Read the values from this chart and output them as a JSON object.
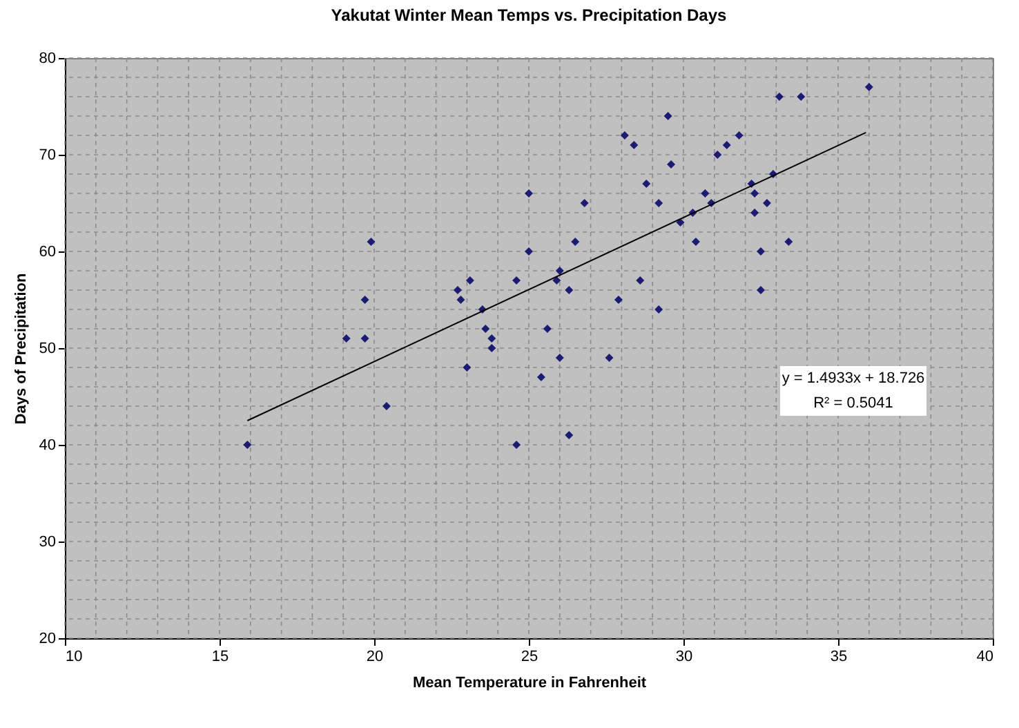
{
  "chart_data": {
    "type": "scatter",
    "title": "Yakutat Winter Mean Temps vs. Precipitation Days",
    "xlabel": "Mean Temperature in Fahrenheit",
    "ylabel": "Days of Precipitation",
    "xlim": [
      10,
      40
    ],
    "xticks": [
      10,
      15,
      20,
      25,
      30,
      35,
      40
    ],
    "ylim": [
      20,
      80
    ],
    "yticks": [
      20,
      30,
      40,
      50,
      60,
      70,
      80
    ],
    "grid": true,
    "annotations": [
      "y = 1.4933x + 18.726",
      "R² = 0.5041"
    ],
    "series": [
      {
        "marker": "diamond",
        "color": "#1c1c72",
        "x": [
          15.9,
          19.1,
          19.7,
          19.7,
          19.9,
          20.4,
          22.7,
          22.8,
          23.0,
          23.1,
          23.5,
          23.6,
          23.8,
          23.8,
          24.6,
          24.6,
          25.0,
          25.0,
          25.4,
          25.6,
          25.9,
          26.0,
          26.0,
          26.3,
          26.3,
          26.5,
          26.8,
          27.6,
          27.9,
          28.1,
          28.4,
          28.6,
          28.8,
          29.2,
          29.2,
          29.5,
          29.6,
          29.9,
          30.3,
          30.4,
          30.7,
          30.9,
          31.1,
          31.4,
          31.8,
          32.2,
          32.3,
          32.3,
          32.5,
          32.5,
          32.7,
          32.9,
          33.1,
          33.4,
          33.8,
          36.0
        ],
        "values": [
          40,
          51,
          51,
          55,
          61,
          44,
          56,
          55,
          48,
          57,
          54,
          52,
          51,
          50,
          57,
          40,
          66,
          60,
          47,
          52,
          57,
          58,
          49,
          56,
          41,
          61,
          65,
          49,
          55,
          72,
          71,
          57,
          67,
          54,
          65,
          74,
          69,
          63,
          64,
          61,
          66,
          65,
          70,
          71,
          72,
          67,
          66,
          64,
          60,
          56,
          65,
          68,
          76,
          61,
          76,
          77
        ]
      },
      {
        "type": "line",
        "color": "#000000",
        "x": [
          15.9,
          35.9
        ],
        "values": [
          42.5,
          72.3
        ]
      }
    ]
  }
}
